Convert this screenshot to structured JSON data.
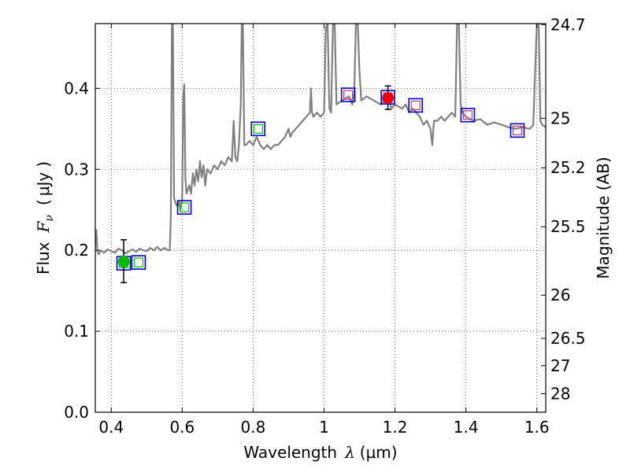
{
  "chart_data": {
    "type": "scatter",
    "xlabel": "Wavelength  λ (μm)",
    "xlabel_parts": {
      "prefix": "Wavelength",
      "symbol": "λ",
      "unit": "(μm)"
    },
    "ylabel": "Flux  Fν  ( μJy )",
    "ylabel_parts": {
      "prefix": "Flux",
      "symbol": "F",
      "subscript": "ν",
      "open": "(",
      "unit": "μJy",
      "close": ")"
    },
    "ylabel_right": "Magnitude (AB)",
    "xlim": [
      0.355,
      1.625
    ],
    "ylim": [
      0.0,
      0.48
    ],
    "xticks": [
      0.4,
      0.6,
      0.8,
      1.0,
      1.2,
      1.4,
      1.6
    ],
    "xtick_labels": [
      "0.4",
      "0.6",
      "0.8",
      "1",
      "1.2",
      "1.4",
      "1.6"
    ],
    "yticks": [
      0.0,
      0.1,
      0.2,
      0.3,
      0.4
    ],
    "ytick_labels": [
      "0.0",
      "0.1",
      "0.2",
      "0.3",
      "0.4"
    ],
    "right_ticks": [
      24.7,
      25,
      25.2,
      25.5,
      26,
      26.5,
      27,
      28
    ],
    "right_tick_labels": [
      "24.7",
      "25",
      "25.2",
      "25.5",
      "26",
      "26.5",
      "27",
      "28"
    ],
    "grid": true,
    "colors": {
      "spectrum": "#808080",
      "model_box": "#0000cc",
      "green": "#00bb00",
      "red": "#ee0000",
      "magenta": "#cc3366",
      "grid": "#555555"
    },
    "spectrum": [
      [
        0.355,
        0.205
      ],
      [
        0.358,
        0.225
      ],
      [
        0.361,
        0.198
      ],
      [
        0.365,
        0.195
      ],
      [
        0.37,
        0.2
      ],
      [
        0.38,
        0.197
      ],
      [
        0.39,
        0.201
      ],
      [
        0.4,
        0.199
      ],
      [
        0.41,
        0.197
      ],
      [
        0.42,
        0.202
      ],
      [
        0.43,
        0.2
      ],
      [
        0.44,
        0.196
      ],
      [
        0.45,
        0.199
      ],
      [
        0.46,
        0.201
      ],
      [
        0.47,
        0.198
      ],
      [
        0.48,
        0.202
      ],
      [
        0.49,
        0.2
      ],
      [
        0.5,
        0.199
      ],
      [
        0.51,
        0.203
      ],
      [
        0.52,
        0.2
      ],
      [
        0.53,
        0.204
      ],
      [
        0.54,
        0.2
      ],
      [
        0.55,
        0.203
      ],
      [
        0.56,
        0.2
      ],
      [
        0.565,
        0.2
      ],
      [
        0.568,
        0.24
      ],
      [
        0.571,
        0.48
      ],
      [
        0.574,
        0.48
      ],
      [
        0.577,
        0.265
      ],
      [
        0.58,
        0.26
      ],
      [
        0.585,
        0.255
      ],
      [
        0.59,
        0.26
      ],
      [
        0.595,
        0.25
      ],
      [
        0.6,
        0.262
      ],
      [
        0.603,
        0.39
      ],
      [
        0.606,
        0.405
      ],
      [
        0.609,
        0.29
      ],
      [
        0.612,
        0.27
      ],
      [
        0.62,
        0.28
      ],
      [
        0.625,
        0.27
      ],
      [
        0.63,
        0.295
      ],
      [
        0.635,
        0.28
      ],
      [
        0.64,
        0.3
      ],
      [
        0.645,
        0.285
      ],
      [
        0.65,
        0.31
      ],
      [
        0.655,
        0.29
      ],
      [
        0.66,
        0.305
      ],
      [
        0.665,
        0.28
      ],
      [
        0.67,
        0.3
      ],
      [
        0.68,
        0.295
      ],
      [
        0.69,
        0.305
      ],
      [
        0.7,
        0.3
      ],
      [
        0.71,
        0.31
      ],
      [
        0.72,
        0.305
      ],
      [
        0.73,
        0.315
      ],
      [
        0.74,
        0.31
      ],
      [
        0.745,
        0.36
      ],
      [
        0.75,
        0.315
      ],
      [
        0.755,
        0.31
      ],
      [
        0.76,
        0.33
      ],
      [
        0.765,
        0.38
      ],
      [
        0.768,
        0.48
      ],
      [
        0.771,
        0.48
      ],
      [
        0.775,
        0.33
      ],
      [
        0.78,
        0.33
      ],
      [
        0.79,
        0.335
      ],
      [
        0.8,
        0.33
      ],
      [
        0.81,
        0.34
      ],
      [
        0.815,
        0.335
      ],
      [
        0.82,
        0.33
      ],
      [
        0.83,
        0.325
      ],
      [
        0.84,
        0.33
      ],
      [
        0.85,
        0.325
      ],
      [
        0.86,
        0.33
      ],
      [
        0.87,
        0.33
      ],
      [
        0.88,
        0.335
      ],
      [
        0.89,
        0.34
      ],
      [
        0.9,
        0.35
      ],
      [
        0.905,
        0.34
      ],
      [
        0.91,
        0.345
      ],
      [
        0.92,
        0.35
      ],
      [
        0.93,
        0.355
      ],
      [
        0.94,
        0.36
      ],
      [
        0.95,
        0.365
      ],
      [
        0.96,
        0.37
      ],
      [
        0.963,
        0.4
      ],
      [
        0.966,
        0.37
      ],
      [
        0.97,
        0.365
      ],
      [
        0.98,
        0.37
      ],
      [
        0.99,
        0.365
      ],
      [
        1.0,
        0.37
      ],
      [
        1.005,
        0.475
      ],
      [
        1.01,
        0.48
      ],
      [
        1.015,
        0.375
      ],
      [
        1.02,
        0.37
      ],
      [
        1.025,
        0.48
      ],
      [
        1.03,
        0.48
      ],
      [
        1.035,
        0.38
      ],
      [
        1.05,
        0.385
      ],
      [
        1.07,
        0.39
      ],
      [
        1.08,
        0.38
      ],
      [
        1.085,
        0.395
      ],
      [
        1.09,
        0.48
      ],
      [
        1.095,
        0.48
      ],
      [
        1.1,
        0.42
      ],
      [
        1.105,
        0.385
      ],
      [
        1.12,
        0.39
      ],
      [
        1.14,
        0.385
      ],
      [
        1.16,
        0.38
      ],
      [
        1.18,
        0.39
      ],
      [
        1.19,
        0.375
      ],
      [
        1.2,
        0.38
      ],
      [
        1.22,
        0.375
      ],
      [
        1.23,
        0.38
      ],
      [
        1.24,
        0.37
      ],
      [
        1.25,
        0.375
      ],
      [
        1.26,
        0.37
      ],
      [
        1.27,
        0.365
      ],
      [
        1.28,
        0.355
      ],
      [
        1.29,
        0.36
      ],
      [
        1.3,
        0.35
      ],
      [
        1.305,
        0.33
      ],
      [
        1.31,
        0.36
      ],
      [
        1.32,
        0.36
      ],
      [
        1.33,
        0.365
      ],
      [
        1.34,
        0.36
      ],
      [
        1.35,
        0.365
      ],
      [
        1.36,
        0.37
      ],
      [
        1.37,
        0.365
      ],
      [
        1.375,
        0.48
      ],
      [
        1.38,
        0.48
      ],
      [
        1.385,
        0.38
      ],
      [
        1.39,
        0.37
      ],
      [
        1.4,
        0.365
      ],
      [
        1.42,
        0.36
      ],
      [
        1.44,
        0.362
      ],
      [
        1.46,
        0.355
      ],
      [
        1.48,
        0.358
      ],
      [
        1.5,
        0.355
      ],
      [
        1.52,
        0.352
      ],
      [
        1.54,
        0.35
      ],
      [
        1.56,
        0.352
      ],
      [
        1.58,
        0.35
      ],
      [
        1.59,
        0.355
      ],
      [
        1.595,
        0.42
      ],
      [
        1.6,
        0.48
      ],
      [
        1.605,
        0.48
      ],
      [
        1.61,
        0.36
      ],
      [
        1.615,
        0.355
      ],
      [
        1.625,
        0.352
      ]
    ],
    "model_boxes": [
      {
        "x": 0.435,
        "y": 0.184,
        "inner": "green"
      },
      {
        "x": 0.477,
        "y": 0.185,
        "inner": "green"
      },
      {
        "x": 0.606,
        "y": 0.253,
        "inner": "green"
      },
      {
        "x": 0.814,
        "y": 0.35,
        "inner": "green"
      },
      {
        "x": 1.068,
        "y": 0.392,
        "inner": "magenta"
      },
      {
        "x": 1.18,
        "y": 0.389,
        "inner": "magenta"
      },
      {
        "x": 1.258,
        "y": 0.379,
        "inner": "magenta"
      },
      {
        "x": 1.405,
        "y": 0.367,
        "inner": "magenta"
      },
      {
        "x": 1.545,
        "y": 0.348,
        "inner": "magenta"
      }
    ],
    "observations": [
      {
        "x": 0.435,
        "y": 0.186,
        "yerr_low": 0.16,
        "yerr_high": 0.213,
        "color": "green"
      },
      {
        "x": 1.18,
        "y": 0.388,
        "yerr_low": 0.374,
        "yerr_high": 0.403,
        "color": "red"
      }
    ]
  }
}
